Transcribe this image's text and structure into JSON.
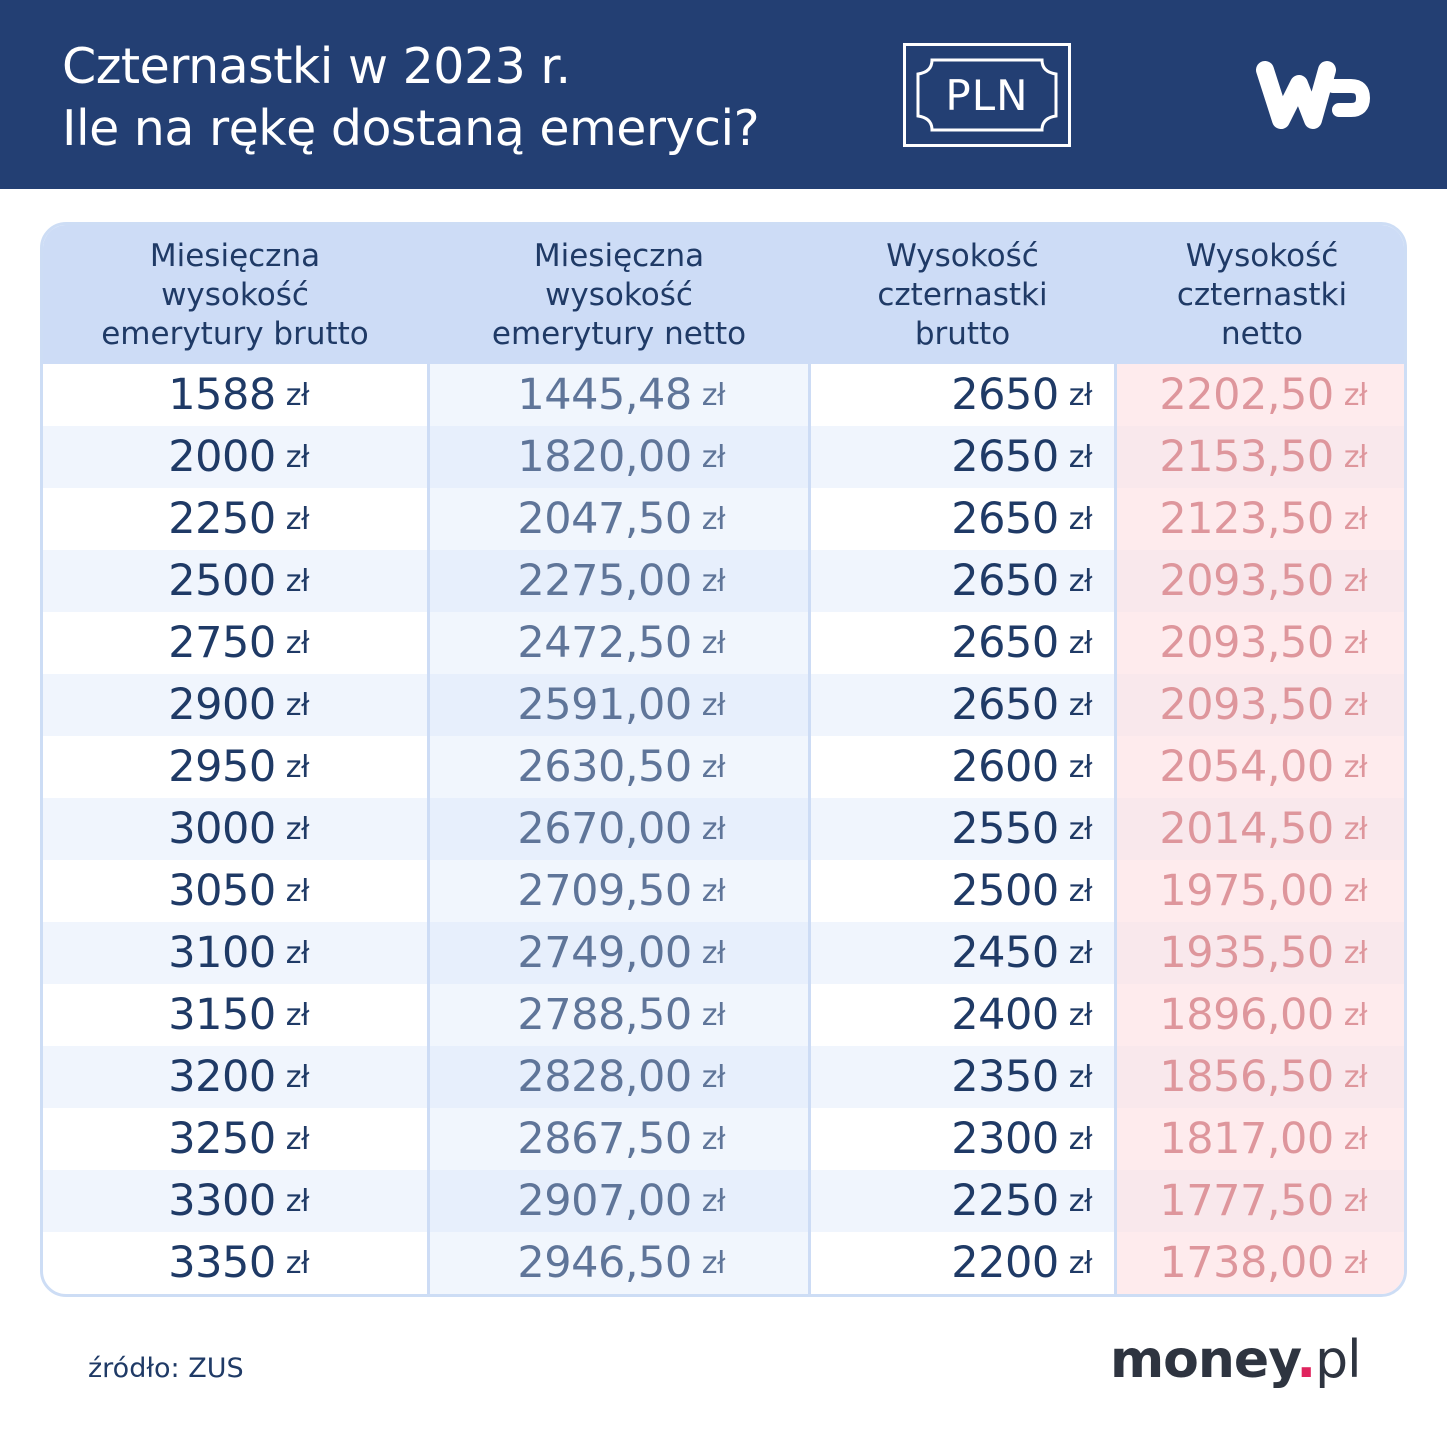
{
  "header": {
    "title_line1": "Czternastki w 2023 r.",
    "title_line2": "Ile na rękę dostaną emeryci?",
    "badge_text": "PLN",
    "logo": "wp-logo",
    "background_color": "#233f73"
  },
  "table": {
    "columns": [
      "Miesięczna wysokość emerytury brutto",
      "Miesięczna wysokość emerytury netto",
      "Wysokość czternastki brutto",
      "Wysokość czternastki netto"
    ],
    "column_lines": [
      [
        "Miesięczna",
        "wysokość",
        "emerytury brutto"
      ],
      [
        "Miesięczna",
        "wysokość",
        "emerytury netto"
      ],
      [
        "Wysokość",
        "czternastki",
        "brutto"
      ],
      [
        "Wysokość",
        "czternastki",
        "netto"
      ]
    ],
    "unit": "zł",
    "highlight_color": "#a30e17",
    "rows": [
      [
        "1588",
        "1445,48",
        "2650",
        "2202,50"
      ],
      [
        "2000",
        "1820,00",
        "2650",
        "2153,50"
      ],
      [
        "2250",
        "2047,50",
        "2650",
        "2123,50"
      ],
      [
        "2500",
        "2275,00",
        "2650",
        "2093,50"
      ],
      [
        "2750",
        "2472,50",
        "2650",
        "2093,50"
      ],
      [
        "2900",
        "2591,00",
        "2650",
        "2093,50"
      ],
      [
        "2950",
        "2630,50",
        "2600",
        "2054,00"
      ],
      [
        "3000",
        "2670,00",
        "2550",
        "2014,50"
      ],
      [
        "3050",
        "2709,50",
        "2500",
        "1975,00"
      ],
      [
        "3100",
        "2749,00",
        "2450",
        "1935,50"
      ],
      [
        "3150",
        "2788,50",
        "2400",
        "1896,00"
      ],
      [
        "3200",
        "2828,00",
        "2350",
        "1856,50"
      ],
      [
        "3250",
        "2867,50",
        "2300",
        "1817,00"
      ],
      [
        "3300",
        "2907,00",
        "2250",
        "1777,50"
      ],
      [
        "3350",
        "2946,50",
        "2200",
        "1738,00"
      ]
    ]
  },
  "footer": {
    "source": "źródło: ZUS",
    "brand_main": "money",
    "brand_dot": ".",
    "brand_tld": "pl"
  },
  "chart_data": {
    "type": "table",
    "title": "Czternastki w 2023 r. Ile na rękę dostaną emeryci?",
    "columns": [
      "Miesięczna wysokość emerytury brutto (zł)",
      "Miesięczna wysokość emerytury netto (zł)",
      "Wysokość czternastki brutto (zł)",
      "Wysokość czternastki netto (zł)"
    ],
    "rows": [
      [
        1588,
        1445.48,
        2650,
        2202.5
      ],
      [
        2000,
        1820.0,
        2650,
        2153.5
      ],
      [
        2250,
        2047.5,
        2650,
        2123.5
      ],
      [
        2500,
        2275.0,
        2650,
        2093.5
      ],
      [
        2750,
        2472.5,
        2650,
        2093.5
      ],
      [
        2900,
        2591.0,
        2650,
        2093.5
      ],
      [
        2950,
        2630.5,
        2600,
        2054.0
      ],
      [
        3000,
        2670.0,
        2550,
        2014.5
      ],
      [
        3050,
        2709.5,
        2500,
        1975.0
      ],
      [
        3100,
        2749.0,
        2450,
        1935.5
      ],
      [
        3150,
        2788.5,
        2400,
        1896.0
      ],
      [
        3200,
        2828.0,
        2350,
        1856.5
      ],
      [
        3250,
        2867.5,
        2300,
        1817.0
      ],
      [
        3300,
        2907.0,
        2250,
        1777.5
      ],
      [
        3350,
        2946.5,
        2200,
        1738.0
      ]
    ],
    "source": "źródło: ZUS"
  }
}
